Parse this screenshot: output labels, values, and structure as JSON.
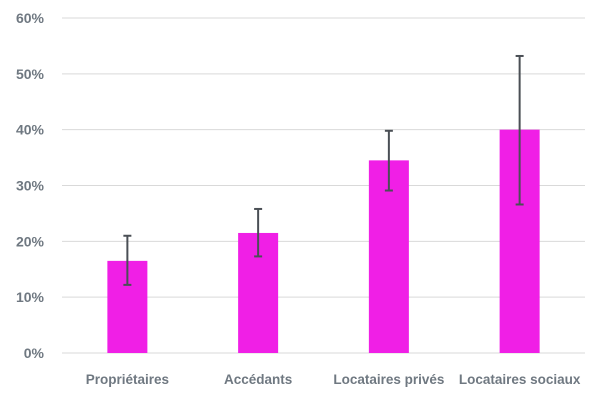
{
  "chart_data": {
    "type": "bar",
    "title": "",
    "xlabel": "",
    "ylabel": "",
    "categories": [
      "Propriétaires",
      "Accédants",
      "Locataires privés",
      "Locataires sociaux"
    ],
    "series": [
      {
        "values": [
          16.5,
          21.5,
          34.5,
          40.0
        ],
        "error_low": [
          12.2,
          17.3,
          29.1,
          26.6
        ],
        "error_high": [
          21.0,
          25.8,
          39.8,
          53.2
        ]
      }
    ],
    "ylim": [
      0,
      60
    ],
    "y_ticks": [
      0,
      10,
      20,
      30,
      40,
      50,
      60
    ],
    "y_tick_format": "percent",
    "grid": true,
    "legend": "none",
    "colors": {
      "bar": "#f01fe6",
      "error_bar": "#4a4f55",
      "grid": "#d9d9d9",
      "text": "#6f7881"
    }
  }
}
